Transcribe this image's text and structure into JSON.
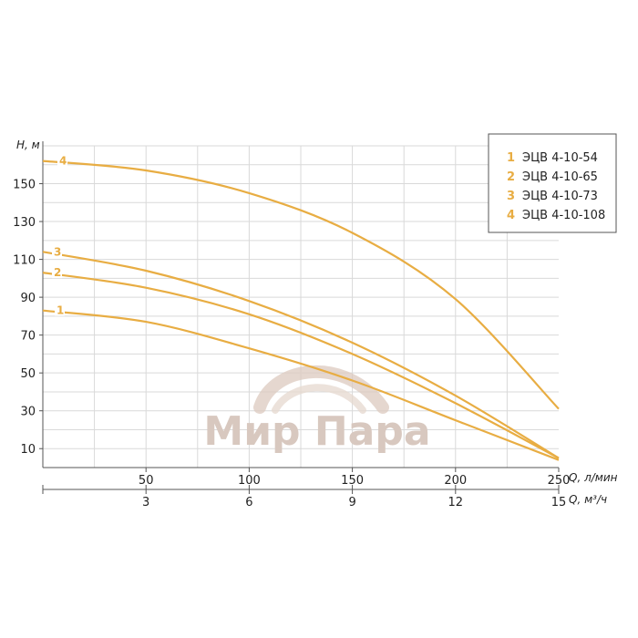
{
  "watermark": {
    "text": "Мир Пара"
  },
  "chart_data": {
    "type": "line",
    "ylabel": "H, м",
    "xlabel": "Q, л/мин",
    "xlabel2": "Q, м³/ч",
    "xlim": [
      0,
      250
    ],
    "ylim": [
      0,
      170
    ],
    "x_ticks": [
      50,
      100,
      150,
      200,
      250
    ],
    "x2_ticks": [
      3,
      6,
      9,
      12,
      15
    ],
    "y_ticks": [
      10,
      30,
      50,
      70,
      90,
      110,
      130,
      150
    ],
    "grid": true,
    "legend_position": "top-right",
    "color": "#e8ad43",
    "series": [
      {
        "name": "ЭЦВ 4-10-54",
        "label": "1",
        "x": [
          0,
          50,
          100,
          150,
          200,
          250
        ],
        "y": [
          83,
          77,
          63,
          46,
          25,
          4
        ]
      },
      {
        "name": "ЭЦВ 4-10-65",
        "label": "2",
        "x": [
          0,
          50,
          100,
          150,
          200,
          250
        ],
        "y": [
          103,
          95,
          81,
          60,
          34,
          5
        ]
      },
      {
        "name": "ЭЦВ 4-10-73",
        "label": "3",
        "x": [
          0,
          50,
          100,
          150,
          200,
          250
        ],
        "y": [
          114,
          104,
          88,
          66,
          38,
          5
        ]
      },
      {
        "name": "ЭЦВ 4-10-108",
        "label": "4",
        "x": [
          0,
          50,
          100,
          150,
          200,
          250
        ],
        "y": [
          162,
          157,
          145,
          124,
          89,
          31
        ]
      }
    ]
  }
}
